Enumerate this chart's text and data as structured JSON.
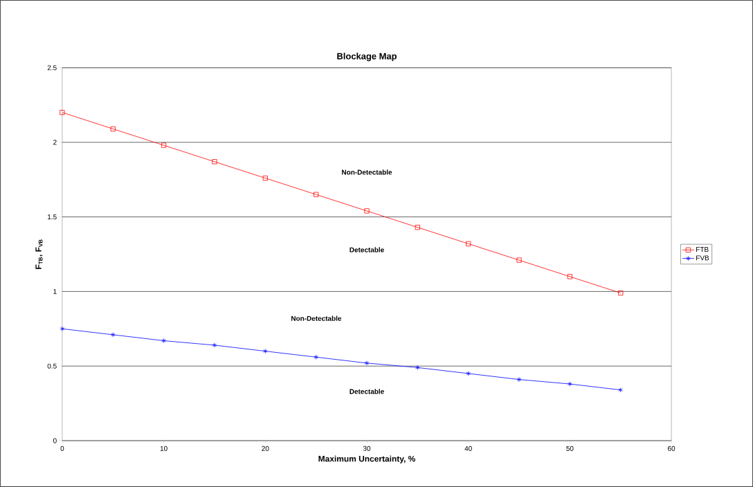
{
  "chart_data": {
    "type": "line",
    "title": "Blockage Map",
    "xlabel": "Maximum Uncertainty, %",
    "ylabel": "F$_{TB}$, F$_{VB}$",
    "x": [
      0,
      5,
      10,
      15,
      20,
      25,
      30,
      35,
      40,
      45,
      50,
      55
    ],
    "series": [
      {
        "name": "FTB",
        "color": "#ff0000",
        "marker": "square",
        "values": [
          2.2,
          2.09,
          1.98,
          1.87,
          1.76,
          1.65,
          1.54,
          1.43,
          1.32,
          1.21,
          1.1,
          0.99
        ]
      },
      {
        "name": "FVB",
        "color": "#0000ff",
        "marker": "cross",
        "values": [
          0.75,
          0.71,
          0.67,
          0.64,
          0.6,
          0.56,
          0.52,
          0.49,
          0.45,
          0.41,
          0.38,
          0.34
        ]
      }
    ],
    "xlim": [
      0,
      60
    ],
    "xticks": [
      0,
      10,
      20,
      30,
      40,
      50,
      60
    ],
    "ylim": [
      0,
      2.5
    ],
    "yticks": [
      0,
      0.5,
      1,
      1.5,
      2,
      2.5
    ],
    "grid": "y",
    "legend": "right",
    "line_style": "solid",
    "annotations": [
      "Non-Detectable",
      "Detectable",
      "Non-Detectable",
      "Detectable"
    ]
  }
}
